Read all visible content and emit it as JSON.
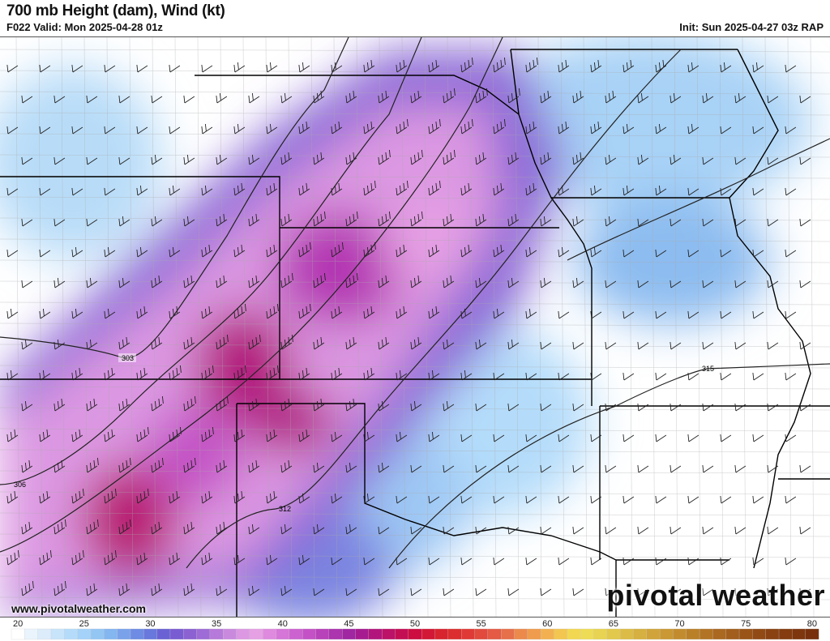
{
  "header": {
    "title": "700 mb Height (dam), Wind (kt)",
    "valid": "F022 Valid: Mon 2025-04-28 01z",
    "init": "Init: Sun 2025-04-27 03z RAP"
  },
  "map": {
    "contour_labels": [
      "303",
      "306",
      "312",
      "315"
    ],
    "contour_color": "#222222",
    "border_color": "#000000"
  },
  "footer": {
    "url": "www.pivotalweather.com",
    "logo": "pivotal weather"
  },
  "colorbar": {
    "ticks": [
      "20",
      "25",
      "30",
      "35",
      "40",
      "45",
      "50",
      "55",
      "60",
      "65",
      "70",
      "75",
      "80"
    ],
    "min": 20,
    "max": 81,
    "colors": [
      "#ffffff",
      "#eaf4fd",
      "#dcecfb",
      "#c8e4fa",
      "#b4dcfa",
      "#a4d2f8",
      "#94c6f4",
      "#84b6f0",
      "#7aa2ea",
      "#6e8ce4",
      "#6878dc",
      "#6a62d4",
      "#7a5cd2",
      "#8c62d2",
      "#9e6cd6",
      "#b67ada",
      "#c98ade",
      "#dc98e2",
      "#e6a0e4",
      "#df8ade",
      "#d676d8",
      "#cc62d0",
      "#c452c6",
      "#b842ba",
      "#ac34ae",
      "#a026a2",
      "#a61c90",
      "#b2167c",
      "#bc1268",
      "#c40e54",
      "#cc0e40",
      "#d21836",
      "#d8242f",
      "#dc2e2e",
      "#e03a36",
      "#e24a3e",
      "#e45a44",
      "#e6704a",
      "#ec8a4c",
      "#f09c4e",
      "#f2b050",
      "#f2c650",
      "#f2d852",
      "#eedc56",
      "#e8d452",
      "#e2c84c",
      "#dcbc46",
      "#d6b040",
      "#d0a43a",
      "#ca9834",
      "#c28c2e",
      "#ba8028",
      "#b27424",
      "#aa6820",
      "#a25e1c",
      "#9a5418",
      "#924a14",
      "#8a4212",
      "#843c10",
      "#7e360e",
      "#78300c"
    ]
  }
}
